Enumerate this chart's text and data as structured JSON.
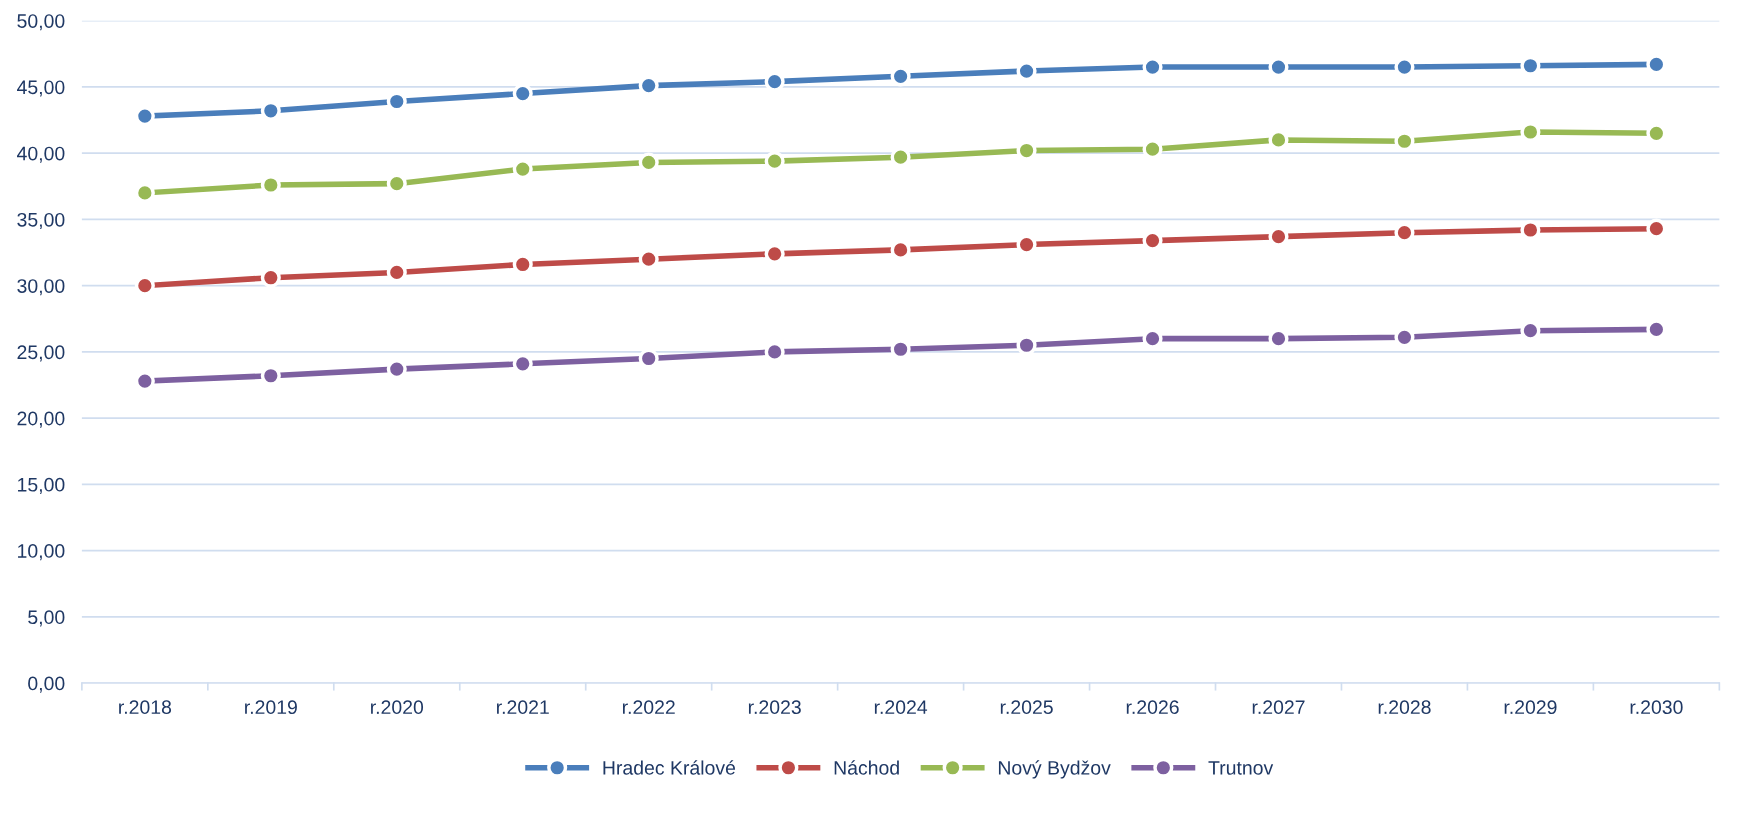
{
  "chart_data": {
    "type": "line",
    "categories": [
      "r.2018",
      "r.2019",
      "r.2020",
      "r.2021",
      "r.2022",
      "r.2023",
      "r.2024",
      "r.2025",
      "r.2026",
      "r.2027",
      "r.2028",
      "r.2029",
      "r.2030"
    ],
    "series": [
      {
        "name": "Hradec Králové",
        "color": "#4a7ebb",
        "values": [
          42.8,
          43.2,
          43.9,
          44.5,
          45.1,
          45.4,
          45.8,
          46.2,
          46.5,
          46.5,
          46.5,
          46.6,
          46.7
        ]
      },
      {
        "name": "Náchod",
        "color": "#be4b48",
        "values": [
          30.0,
          30.6,
          31.0,
          31.6,
          32.0,
          32.4,
          32.7,
          33.1,
          33.4,
          33.7,
          34.0,
          34.2,
          34.3
        ]
      },
      {
        "name": "Nový Bydžov",
        "color": "#98b954",
        "values": [
          37.0,
          37.6,
          37.7,
          38.8,
          39.3,
          39.4,
          39.7,
          40.2,
          40.3,
          41.0,
          40.9,
          41.6,
          41.5
        ]
      },
      {
        "name": "Trutnov",
        "color": "#7d60a0",
        "values": [
          22.8,
          23.2,
          23.7,
          24.1,
          24.5,
          25.0,
          25.2,
          25.5,
          26.0,
          26.0,
          26.1,
          26.6,
          26.7
        ]
      }
    ],
    "ylim": [
      0,
      50
    ],
    "yticks": [
      {
        "value": 0,
        "label": "0,00"
      },
      {
        "value": 5,
        "label": "5,00"
      },
      {
        "value": 10,
        "label": "10,00"
      },
      {
        "value": 15,
        "label": "15,00"
      },
      {
        "value": 20,
        "label": "20,00"
      },
      {
        "value": 25,
        "label": "25,00"
      },
      {
        "value": 30,
        "label": "30,00"
      },
      {
        "value": 35,
        "label": "35,00"
      },
      {
        "value": 40,
        "label": "40,00"
      },
      {
        "value": 45,
        "label": "45,00"
      },
      {
        "value": 50,
        "label": "50,00"
      }
    ],
    "grid": "y",
    "legend": "bottom",
    "marker": "circle",
    "line_style": "solid"
  }
}
